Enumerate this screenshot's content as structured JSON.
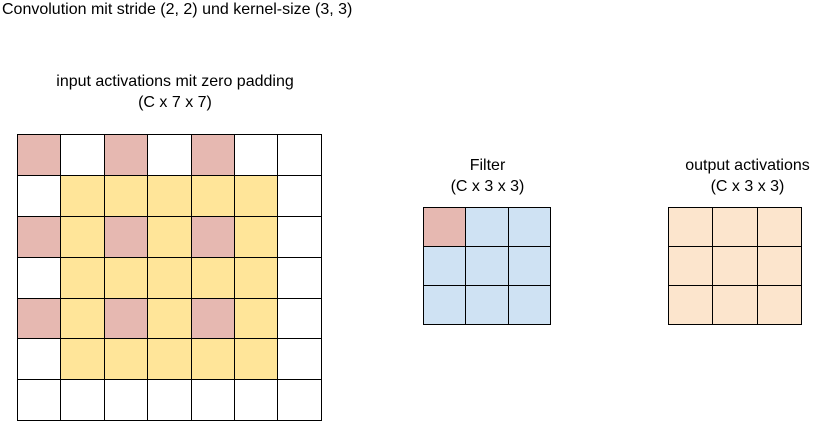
{
  "title": "Convolution mit stride (2, 2) und kernel-size (3, 3)",
  "colors": {
    "white": "#ffffff",
    "pink": "#e6b8b1",
    "yellow": "#ffe599",
    "blue": "#cfe2f3",
    "peach": "#fce5cd",
    "line": "#000000"
  },
  "input": {
    "caption_line1": "input activations mit zero padding",
    "caption_line2": "(C x 7 x 7)",
    "cells": [
      [
        "pink",
        "white",
        "pink",
        "white",
        "pink",
        "white",
        "white"
      ],
      [
        "white",
        "yellow",
        "yellow",
        "yellow",
        "yellow",
        "yellow",
        "white"
      ],
      [
        "pink",
        "yellow",
        "pink",
        "yellow",
        "pink",
        "yellow",
        "white"
      ],
      [
        "white",
        "yellow",
        "yellow",
        "yellow",
        "yellow",
        "yellow",
        "white"
      ],
      [
        "pink",
        "yellow",
        "pink",
        "yellow",
        "pink",
        "yellow",
        "white"
      ],
      [
        "white",
        "yellow",
        "yellow",
        "yellow",
        "yellow",
        "yellow",
        "white"
      ],
      [
        "white",
        "white",
        "white",
        "white",
        "white",
        "white",
        "white"
      ]
    ]
  },
  "filter": {
    "caption_line1": "Filter",
    "caption_line2": "(C x 3 x 3)",
    "cells": [
      [
        "pink",
        "blue",
        "blue"
      ],
      [
        "blue",
        "blue",
        "blue"
      ],
      [
        "blue",
        "blue",
        "blue"
      ]
    ]
  },
  "output": {
    "caption_line1": "output activations",
    "caption_line2": "(C x 3 x 3)",
    "cells": [
      [
        "peach",
        "peach",
        "peach"
      ],
      [
        "peach",
        "peach",
        "peach"
      ],
      [
        "peach",
        "peach",
        "peach"
      ]
    ]
  }
}
